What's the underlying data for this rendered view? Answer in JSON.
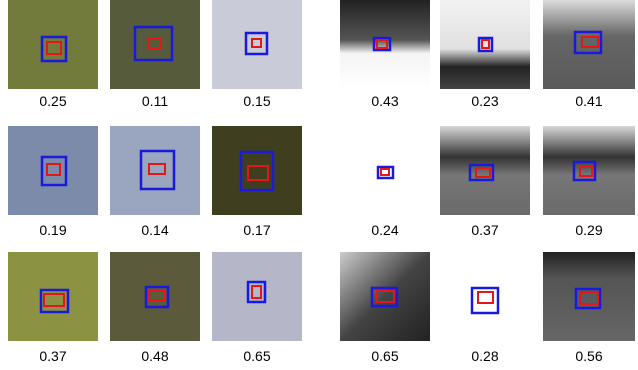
{
  "cells": [
    {
      "label": "0.25"
    },
    {
      "label": "0.11"
    },
    {
      "label": "0.15"
    },
    {
      "label": "0.43"
    },
    {
      "label": "0.23"
    },
    {
      "label": "0.41"
    },
    {
      "label": "0.19"
    },
    {
      "label": "0.14"
    },
    {
      "label": "0.17"
    },
    {
      "label": "0.24"
    },
    {
      "label": "0.37"
    },
    {
      "label": "0.29"
    },
    {
      "label": "0.37"
    },
    {
      "label": "0.48"
    },
    {
      "label": "0.65"
    },
    {
      "label": "0.65"
    },
    {
      "label": "0.28"
    },
    {
      "label": "0.56"
    }
  ]
}
